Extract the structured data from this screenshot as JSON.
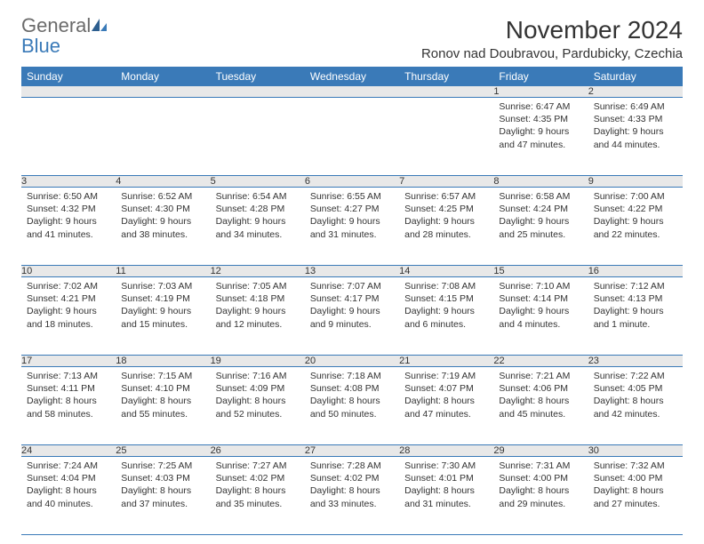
{
  "logo": {
    "text1": "General",
    "text2": "Blue"
  },
  "title": "November 2024",
  "location": "Ronov nad Doubravou, Pardubicky, Czechia",
  "colors": {
    "header_bg": "#3a7ab8",
    "header_text": "#ffffff",
    "daynum_bg": "#e8e8e8",
    "text": "#333333",
    "logo_gray": "#6b6b6b",
    "logo_blue": "#3a7ab8",
    "border": "#3a7ab8",
    "page_bg": "#ffffff"
  },
  "typography": {
    "title_fontsize": 28,
    "location_fontsize": 15,
    "dayheader_fontsize": 12,
    "daynum_fontsize": 11,
    "cell_fontsize": 10.5,
    "font_family": "Arial"
  },
  "day_headers": [
    "Sunday",
    "Monday",
    "Tuesday",
    "Wednesday",
    "Thursday",
    "Friday",
    "Saturday"
  ],
  "weeks": [
    [
      null,
      null,
      null,
      null,
      null,
      {
        "n": "1",
        "sr": "Sunrise: 6:47 AM",
        "ss": "Sunset: 4:35 PM",
        "dl": "Daylight: 9 hours and 47 minutes."
      },
      {
        "n": "2",
        "sr": "Sunrise: 6:49 AM",
        "ss": "Sunset: 4:33 PM",
        "dl": "Daylight: 9 hours and 44 minutes."
      }
    ],
    [
      {
        "n": "3",
        "sr": "Sunrise: 6:50 AM",
        "ss": "Sunset: 4:32 PM",
        "dl": "Daylight: 9 hours and 41 minutes."
      },
      {
        "n": "4",
        "sr": "Sunrise: 6:52 AM",
        "ss": "Sunset: 4:30 PM",
        "dl": "Daylight: 9 hours and 38 minutes."
      },
      {
        "n": "5",
        "sr": "Sunrise: 6:54 AM",
        "ss": "Sunset: 4:28 PM",
        "dl": "Daylight: 9 hours and 34 minutes."
      },
      {
        "n": "6",
        "sr": "Sunrise: 6:55 AM",
        "ss": "Sunset: 4:27 PM",
        "dl": "Daylight: 9 hours and 31 minutes."
      },
      {
        "n": "7",
        "sr": "Sunrise: 6:57 AM",
        "ss": "Sunset: 4:25 PM",
        "dl": "Daylight: 9 hours and 28 minutes."
      },
      {
        "n": "8",
        "sr": "Sunrise: 6:58 AM",
        "ss": "Sunset: 4:24 PM",
        "dl": "Daylight: 9 hours and 25 minutes."
      },
      {
        "n": "9",
        "sr": "Sunrise: 7:00 AM",
        "ss": "Sunset: 4:22 PM",
        "dl": "Daylight: 9 hours and 22 minutes."
      }
    ],
    [
      {
        "n": "10",
        "sr": "Sunrise: 7:02 AM",
        "ss": "Sunset: 4:21 PM",
        "dl": "Daylight: 9 hours and 18 minutes."
      },
      {
        "n": "11",
        "sr": "Sunrise: 7:03 AM",
        "ss": "Sunset: 4:19 PM",
        "dl": "Daylight: 9 hours and 15 minutes."
      },
      {
        "n": "12",
        "sr": "Sunrise: 7:05 AM",
        "ss": "Sunset: 4:18 PM",
        "dl": "Daylight: 9 hours and 12 minutes."
      },
      {
        "n": "13",
        "sr": "Sunrise: 7:07 AM",
        "ss": "Sunset: 4:17 PM",
        "dl": "Daylight: 9 hours and 9 minutes."
      },
      {
        "n": "14",
        "sr": "Sunrise: 7:08 AM",
        "ss": "Sunset: 4:15 PM",
        "dl": "Daylight: 9 hours and 6 minutes."
      },
      {
        "n": "15",
        "sr": "Sunrise: 7:10 AM",
        "ss": "Sunset: 4:14 PM",
        "dl": "Daylight: 9 hours and 4 minutes."
      },
      {
        "n": "16",
        "sr": "Sunrise: 7:12 AM",
        "ss": "Sunset: 4:13 PM",
        "dl": "Daylight: 9 hours and 1 minute."
      }
    ],
    [
      {
        "n": "17",
        "sr": "Sunrise: 7:13 AM",
        "ss": "Sunset: 4:11 PM",
        "dl": "Daylight: 8 hours and 58 minutes."
      },
      {
        "n": "18",
        "sr": "Sunrise: 7:15 AM",
        "ss": "Sunset: 4:10 PM",
        "dl": "Daylight: 8 hours and 55 minutes."
      },
      {
        "n": "19",
        "sr": "Sunrise: 7:16 AM",
        "ss": "Sunset: 4:09 PM",
        "dl": "Daylight: 8 hours and 52 minutes."
      },
      {
        "n": "20",
        "sr": "Sunrise: 7:18 AM",
        "ss": "Sunset: 4:08 PM",
        "dl": "Daylight: 8 hours and 50 minutes."
      },
      {
        "n": "21",
        "sr": "Sunrise: 7:19 AM",
        "ss": "Sunset: 4:07 PM",
        "dl": "Daylight: 8 hours and 47 minutes."
      },
      {
        "n": "22",
        "sr": "Sunrise: 7:21 AM",
        "ss": "Sunset: 4:06 PM",
        "dl": "Daylight: 8 hours and 45 minutes."
      },
      {
        "n": "23",
        "sr": "Sunrise: 7:22 AM",
        "ss": "Sunset: 4:05 PM",
        "dl": "Daylight: 8 hours and 42 minutes."
      }
    ],
    [
      {
        "n": "24",
        "sr": "Sunrise: 7:24 AM",
        "ss": "Sunset: 4:04 PM",
        "dl": "Daylight: 8 hours and 40 minutes."
      },
      {
        "n": "25",
        "sr": "Sunrise: 7:25 AM",
        "ss": "Sunset: 4:03 PM",
        "dl": "Daylight: 8 hours and 37 minutes."
      },
      {
        "n": "26",
        "sr": "Sunrise: 7:27 AM",
        "ss": "Sunset: 4:02 PM",
        "dl": "Daylight: 8 hours and 35 minutes."
      },
      {
        "n": "27",
        "sr": "Sunrise: 7:28 AM",
        "ss": "Sunset: 4:02 PM",
        "dl": "Daylight: 8 hours and 33 minutes."
      },
      {
        "n": "28",
        "sr": "Sunrise: 7:30 AM",
        "ss": "Sunset: 4:01 PM",
        "dl": "Daylight: 8 hours and 31 minutes."
      },
      {
        "n": "29",
        "sr": "Sunrise: 7:31 AM",
        "ss": "Sunset: 4:00 PM",
        "dl": "Daylight: 8 hours and 29 minutes."
      },
      {
        "n": "30",
        "sr": "Sunrise: 7:32 AM",
        "ss": "Sunset: 4:00 PM",
        "dl": "Daylight: 8 hours and 27 minutes."
      }
    ]
  ]
}
